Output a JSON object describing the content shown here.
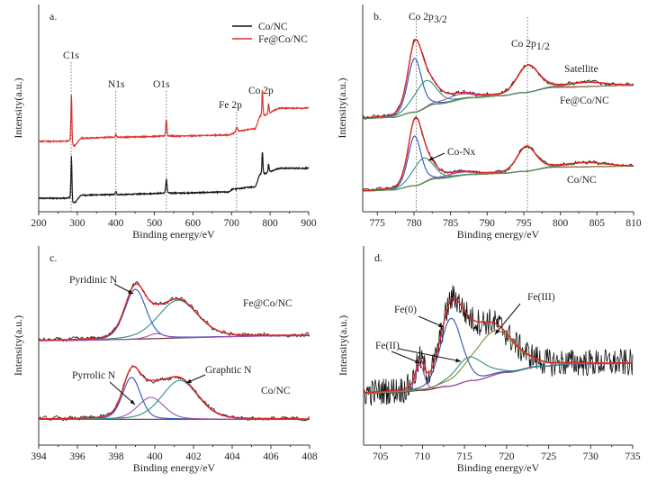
{
  "chart_data": [
    {
      "panel": "a.",
      "type": "line",
      "xlabel": "Binding energy/eV",
      "ylabel": "Intensity(a.u.)",
      "xlim": [
        200,
        900
      ],
      "ylim": [
        0,
        100
      ],
      "xticks": [
        200,
        300,
        400,
        500,
        600,
        700,
        800,
        900
      ],
      "legend": {
        "placement": "top-right",
        "entries": [
          "Co/NC",
          "Fe@Co/NC"
        ]
      },
      "peak_labels": [
        {
          "text": "C1s",
          "x": 284
        },
        {
          "text": "N1s",
          "x": 400
        },
        {
          "text": "O1s",
          "x": 531
        },
        {
          "text": "Fe 2p",
          "x": 713
        },
        {
          "text": "Co 2p",
          "x": 780
        }
      ],
      "series": [
        {
          "name": "Co/NC",
          "color": "#111111",
          "background": [
            [
              200,
              6.5
            ],
            [
              282,
              6.5
            ],
            [
              290,
              4
            ],
            [
              312,
              8
            ],
            [
              400,
              8.3
            ],
            [
              550,
              9
            ],
            [
              690,
              9.5
            ],
            [
              705,
              11
            ],
            [
              760,
              12
            ],
            [
              775,
              18
            ],
            [
              830,
              21
            ],
            [
              900,
              21
            ]
          ],
          "peaks": [
            [
              284.8,
              21,
              3
            ],
            [
              400,
              1.5,
              3
            ],
            [
              531,
              7,
              3.5
            ],
            [
              780,
              11,
              3
            ],
            [
              796,
              4,
              3
            ]
          ]
        },
        {
          "name": "Fe@Co/NC",
          "color": "#e03030",
          "background": [
            [
              200,
              34
            ],
            [
              282,
              34
            ],
            [
              290,
              31.5
            ],
            [
              312,
              35.5
            ],
            [
              400,
              36
            ],
            [
              550,
              36.5
            ],
            [
              690,
              37
            ],
            [
              710,
              38
            ],
            [
              718,
              39
            ],
            [
              760,
              40
            ],
            [
              775,
              46
            ],
            [
              830,
              50
            ],
            [
              900,
              50
            ]
          ],
          "peaks": [
            [
              284.8,
              23,
              3
            ],
            [
              400,
              1.5,
              3
            ],
            [
              531,
              8,
              3.5
            ],
            [
              713,
              2.5,
              5
            ],
            [
              780,
              13,
              3
            ],
            [
              796,
              5,
              3
            ]
          ]
        }
      ]
    },
    {
      "panel": "b.",
      "type": "line",
      "xlabel": "Binding energy/eV",
      "ylabel": "Intensity(a.u.)",
      "xlim": [
        773,
        810
      ],
      "ylim": [
        0,
        100
      ],
      "xticks": [
        775,
        780,
        785,
        790,
        795,
        800,
        805,
        810
      ],
      "reference_lines": [
        780.3,
        795.5
      ],
      "annotations": [
        "Co 2p",
        "3/2",
        "Co 2p",
        "1/2",
        "Satellite",
        "Fe@Co/NC",
        "Co-Nx",
        "Co/NC"
      ],
      "series": [
        {
          "name": "Fe@Co/NC",
          "background": [
            [
              773,
              45
            ],
            [
              777,
              45.5
            ],
            [
              780,
              48
            ],
            [
              783,
              52
            ],
            [
              788,
              55
            ],
            [
              792,
              56
            ],
            [
              795,
              57.5
            ],
            [
              799,
              60
            ],
            [
              810,
              61
            ]
          ],
          "components": [
            [
              780.1,
              26,
              2.2,
              "#2b55b0"
            ],
            [
              781.5,
              13,
              3.6,
              "#2a8f8a"
            ],
            [
              786,
              2.5,
              5,
              "#a050b0"
            ],
            [
              795.6,
              13,
              3.4,
              "#a08a40"
            ],
            [
              803.5,
              2,
              6,
              "#4a9a50"
            ]
          ],
          "noise": 1.6
        },
        {
          "name": "Co/NC",
          "background": [
            [
              773,
              10
            ],
            [
              777,
              10.5
            ],
            [
              780,
              12.5
            ],
            [
              783,
              16
            ],
            [
              788,
              18
            ],
            [
              792,
              18.5
            ],
            [
              795,
              19.5
            ],
            [
              799,
              21.5
            ],
            [
              810,
              22
            ]
          ],
          "components": [
            [
              780.1,
              24,
              2.1,
              "#2b55b0"
            ],
            [
              781.2,
              12,
              3.2,
              "#2a8f8a"
            ],
            [
              786,
              1.5,
              5,
              "#a050b0"
            ],
            [
              795.4,
              12,
              3,
              "#a08a40"
            ],
            [
              803.5,
              2,
              6,
              "#4a9a50"
            ]
          ],
          "noise": 1.4
        }
      ]
    },
    {
      "panel": "c.",
      "type": "line",
      "xlabel": "Binding energy/eV",
      "ylabel": "Intensity(a.u.)",
      "xlim": [
        394,
        408
      ],
      "ylim": [
        0,
        100
      ],
      "xticks": [
        394,
        396,
        398,
        400,
        402,
        404,
        406,
        408
      ],
      "annotations": [
        "Pyridinic N",
        "Fe@Co/NC",
        "Pyrrolic N",
        "Graphtic N",
        "Co/NC"
      ],
      "series": [
        {
          "name": "Fe@Co/NC",
          "background": [
            [
              394,
              52.5
            ],
            [
              408,
              55
            ]
          ],
          "components": [
            [
              399.0,
              25,
              1.3,
              "#2b55b0"
            ],
            [
              401.2,
              19,
              2.4,
              "#2a8f8a"
            ],
            [
              400.1,
              2.5,
              1.0,
              "#a050b0"
            ]
          ],
          "noise": 1.8
        },
        {
          "name": "Co/NC",
          "background": [
            [
              394,
              13
            ],
            [
              408,
              13
            ]
          ],
          "components": [
            [
              398.8,
              21,
              1.1,
              "#2b55b0"
            ],
            [
              399.8,
              11,
              1.6,
              "#a050b0"
            ],
            [
              401.3,
              19.5,
              2.2,
              "#2a8f8a"
            ]
          ],
          "noise": 1.8
        }
      ]
    },
    {
      "panel": "d.",
      "type": "line",
      "xlabel": "Binding energy/eV",
      "ylabel": "Intensity(a.u.)",
      "xlim": [
        703,
        735
      ],
      "ylim": [
        0,
        100
      ],
      "xticks": [
        705,
        710,
        715,
        720,
        725,
        730,
        735
      ],
      "annotations": [
        "Fe(0)",
        "Fe(II)",
        "Fe(III)"
      ],
      "series": [
        {
          "name": "Fe@Co/NC",
          "background": [
            [
              703,
              26
            ],
            [
              707,
              26.5
            ],
            [
              710,
              27.5
            ],
            [
              713,
              29.5
            ],
            [
              716,
              32.5
            ],
            [
              720,
              36.5
            ],
            [
              724,
              39.5
            ],
            [
              728,
              40.8
            ],
            [
              735,
              41
            ]
          ],
          "components": [
            [
              709.7,
              13,
              1.2,
              "#a050b0"
            ],
            [
              713.4,
              34,
              3.0,
              "#2b55b0"
            ],
            [
              715.6,
              12,
              4.2,
              "#2a8f8a"
            ],
            [
              718.5,
              22,
              6.0,
              "#8a8a30"
            ]
          ],
          "noise": 7
        }
      ]
    }
  ]
}
